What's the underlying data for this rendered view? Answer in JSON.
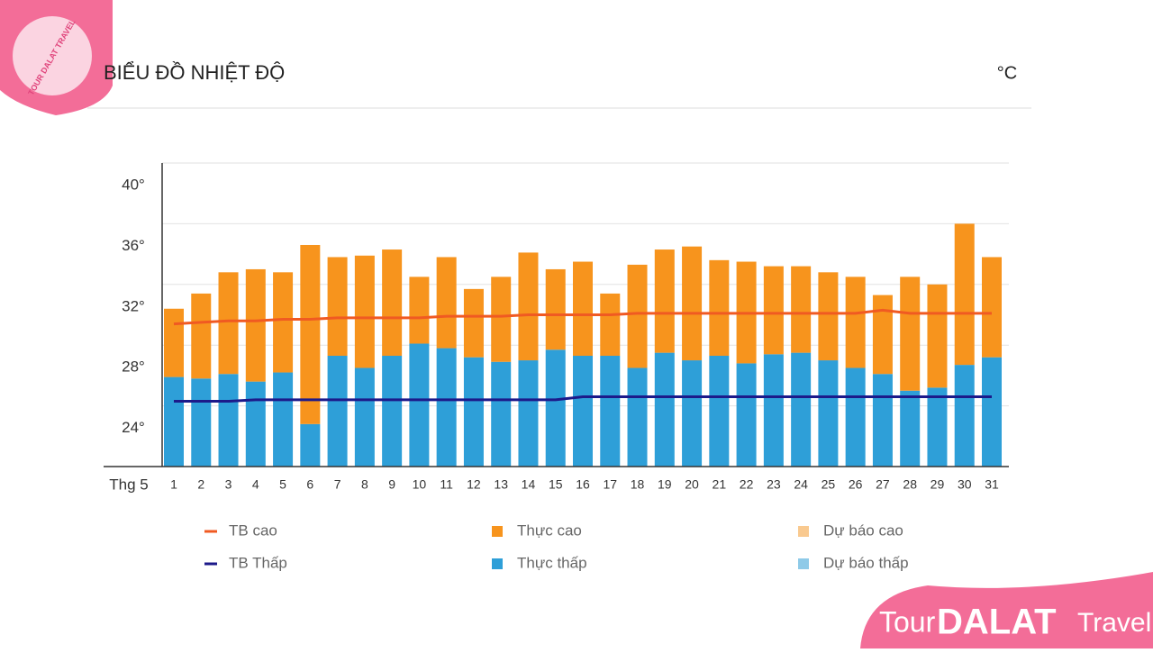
{
  "header": {
    "title": "BIỂU ĐỒ NHIỆT ĐỘ",
    "unit": "°C"
  },
  "brand": {
    "logo": "TOUR DALAT TRAVEL",
    "tour": "Tour",
    "dalat": "DALAT",
    "travel": "Travel"
  },
  "chart_data": {
    "type": "bar",
    "x_label": "Thg 5",
    "categories": [
      "1",
      "2",
      "3",
      "4",
      "5",
      "6",
      "7",
      "8",
      "9",
      "10",
      "11",
      "12",
      "13",
      "14",
      "15",
      "16",
      "17",
      "18",
      "19",
      "20",
      "21",
      "22",
      "23",
      "24",
      "25",
      "26",
      "27",
      "28",
      "29",
      "30",
      "31"
    ],
    "ylim": [
      20,
      40
    ],
    "yticks": [
      {
        "value": 24,
        "label": "24°"
      },
      {
        "value": 28,
        "label": "28°"
      },
      {
        "value": 32,
        "label": "32°"
      },
      {
        "value": 36,
        "label": "36°"
      },
      {
        "value": 40,
        "label": "40°"
      }
    ],
    "grid": true,
    "series": [
      {
        "name": "TB cao",
        "type": "line",
        "color": "#f05a22",
        "values": [
          29.4,
          29.5,
          29.6,
          29.6,
          29.7,
          29.7,
          29.8,
          29.8,
          29.8,
          29.8,
          29.9,
          29.9,
          29.9,
          30.0,
          30.0,
          30.0,
          30.0,
          30.1,
          30.1,
          30.1,
          30.1,
          30.1,
          30.1,
          30.1,
          30.1,
          30.1,
          30.3,
          30.1,
          30.1,
          30.1,
          30.1
        ]
      },
      {
        "name": "TB Thấp",
        "type": "line",
        "color": "#1c1a8a",
        "values": [
          24.3,
          24.3,
          24.3,
          24.4,
          24.4,
          24.4,
          24.4,
          24.4,
          24.4,
          24.4,
          24.4,
          24.4,
          24.4,
          24.4,
          24.4,
          24.6,
          24.6,
          24.6,
          24.6,
          24.6,
          24.6,
          24.6,
          24.6,
          24.6,
          24.6,
          24.6,
          24.6,
          24.6,
          24.6,
          24.6,
          24.6
        ]
      },
      {
        "name": "Thực cao",
        "type": "bar",
        "color": "#f7941d",
        "values": [
          30.4,
          31.4,
          32.8,
          33.0,
          32.8,
          34.6,
          33.8,
          33.9,
          34.3,
          32.5,
          33.8,
          31.7,
          32.5,
          34.1,
          33.0,
          33.5,
          31.4,
          33.3,
          34.3,
          34.5,
          33.6,
          33.5,
          33.2,
          33.2,
          32.8,
          32.5,
          31.3,
          32.5,
          32.0,
          36.0,
          33.8
        ]
      },
      {
        "name": "Thực thấp",
        "type": "bar",
        "color": "#2e9fd8",
        "values": [
          25.9,
          25.8,
          26.1,
          25.6,
          26.2,
          22.8,
          27.3,
          26.5,
          27.3,
          28.1,
          27.8,
          27.2,
          26.9,
          27.0,
          27.7,
          27.3,
          27.3,
          26.5,
          27.5,
          27.0,
          27.3,
          26.8,
          27.4,
          27.5,
          27.0,
          26.5,
          26.1,
          25.0,
          25.2,
          26.7,
          27.2
        ]
      },
      {
        "name": "Dự báo cao",
        "type": "bar",
        "color": "#f9c98f",
        "values": [
          null,
          null,
          null,
          null,
          null,
          null,
          null,
          null,
          null,
          null,
          null,
          null,
          null,
          null,
          null,
          null,
          null,
          null,
          null,
          null,
          null,
          null,
          null,
          null,
          null,
          null,
          null,
          null,
          null,
          null,
          null
        ]
      },
      {
        "name": "Dự báo thấp",
        "type": "bar",
        "color": "#8ecae8",
        "values": [
          null,
          null,
          null,
          null,
          null,
          null,
          null,
          null,
          null,
          null,
          null,
          null,
          null,
          null,
          null,
          null,
          null,
          null,
          null,
          null,
          null,
          null,
          null,
          null,
          null,
          null,
          null,
          null,
          null,
          null,
          null
        ]
      }
    ]
  }
}
